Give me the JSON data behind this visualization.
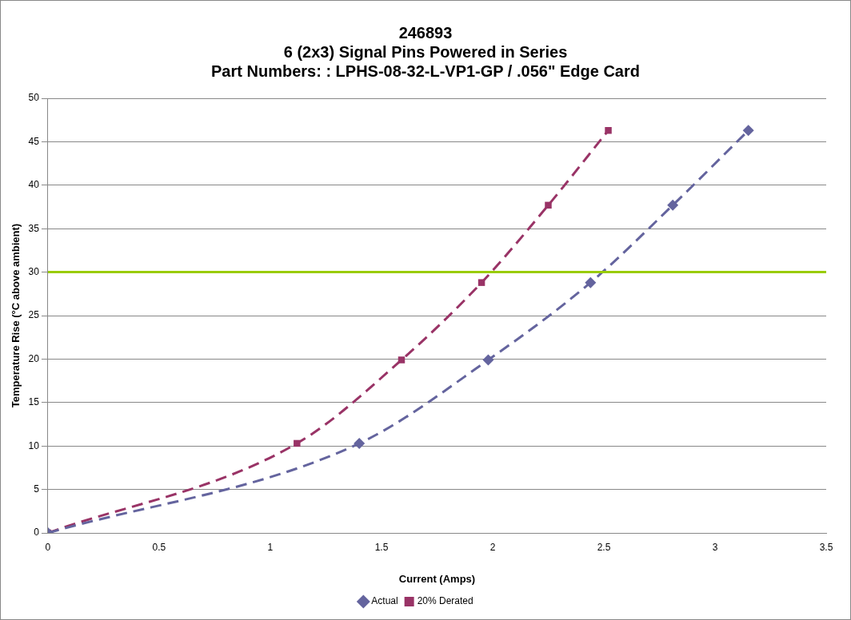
{
  "chart_data": {
    "type": "line",
    "title": "246893",
    "subtitle": "6 (2x3) Signal Pins Powered in Series\nPart Numbers: : LPHS-08-32-L-VP1-GP / .056\" Edge Card",
    "xlabel": "Current (Amps)",
    "ylabel": "Temperature Rise (°C above ambient)",
    "series": [
      {
        "name": "Actual",
        "color": "#64649e",
        "marker": "diamond",
        "x": [
          0,
          1.4,
          1.98,
          2.44,
          2.81,
          3.15
        ],
        "values": [
          0,
          10.3,
          19.9,
          28.8,
          37.7,
          46.3
        ]
      },
      {
        "name": "20% Derated",
        "color": "#993366",
        "marker": "square",
        "x": [
          0,
          1.12,
          1.59,
          1.95,
          2.25,
          2.52
        ],
        "values": [
          0,
          10.3,
          19.9,
          28.8,
          37.7,
          46.3
        ]
      }
    ],
    "line_style": "dashed",
    "xlim": [
      0,
      3.5
    ],
    "xticks": [
      0,
      0.5,
      1,
      1.5,
      2,
      2.5,
      3,
      3.5
    ],
    "ylim": [
      0,
      50
    ],
    "yticks": [
      0,
      5,
      10,
      15,
      20,
      25,
      30,
      35,
      40,
      45,
      50
    ],
    "ref_lines": [
      {
        "axis": "y",
        "value": 30,
        "color": "#99cc00"
      }
    ],
    "grid": "y",
    "legend": "bottom"
  }
}
